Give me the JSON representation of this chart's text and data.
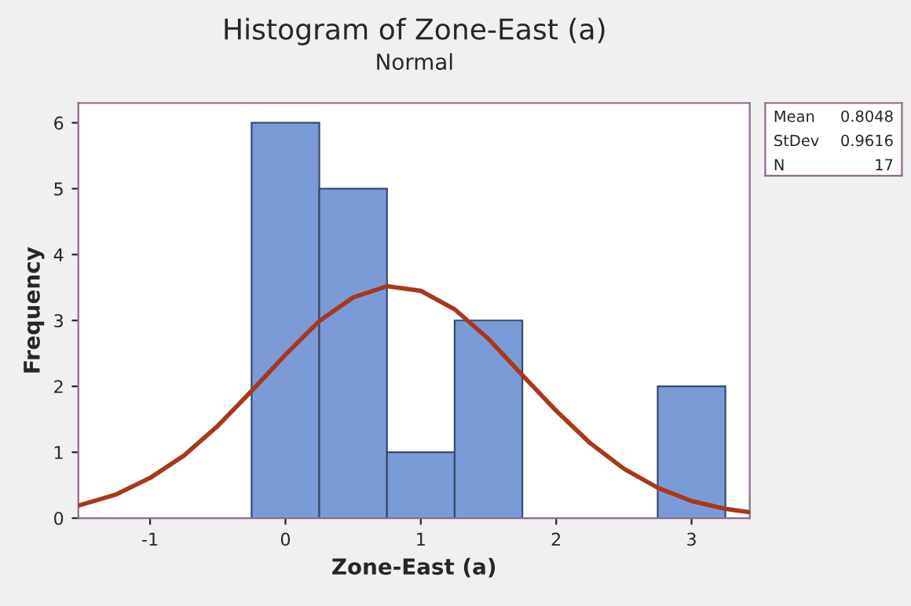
{
  "chart_data": {
    "type": "histogram",
    "title": "Histogram of Zone-East (a)",
    "subtitle": "Normal",
    "xlabel": "Zone-East (a)",
    "ylabel": "Frequency",
    "series": [
      {
        "color": "#7b9bd8",
        "bins": [
          -0.25,
          0.25,
          0.75,
          1.25,
          1.75,
          2.25,
          2.75,
          3.25
        ],
        "values": [
          6,
          5,
          1,
          3,
          0,
          0,
          2
        ]
      },
      {
        "type": "line",
        "color": "#a8381a",
        "x": [
          -1.53,
          -1.25,
          -1,
          -0.75,
          -0.5,
          -0.25,
          0,
          0.25,
          0.5,
          0.75,
          1,
          1.25,
          1.5,
          1.75,
          2,
          2.25,
          2.5,
          2.75,
          3,
          3.25,
          3.43
        ],
        "values": [
          0.19,
          0.36,
          0.61,
          0.95,
          1.4,
          1.93,
          2.48,
          2.99,
          3.35,
          3.52,
          3.45,
          3.17,
          2.72,
          2.17,
          1.63,
          1.14,
          0.75,
          0.46,
          0.26,
          0.14,
          0.09
        ]
      }
    ],
    "xlim": [
      -1.53,
      3.43
    ],
    "ylim": [
      0,
      6.3
    ],
    "xticks": [
      -1,
      0,
      1,
      2,
      3
    ],
    "yticks": [
      0,
      1,
      2,
      3,
      4,
      5,
      6
    ],
    "grid": false,
    "legend": false,
    "annotations": [
      "Mean 0.8048",
      "StDev 0.9616",
      "N 17"
    ]
  }
}
